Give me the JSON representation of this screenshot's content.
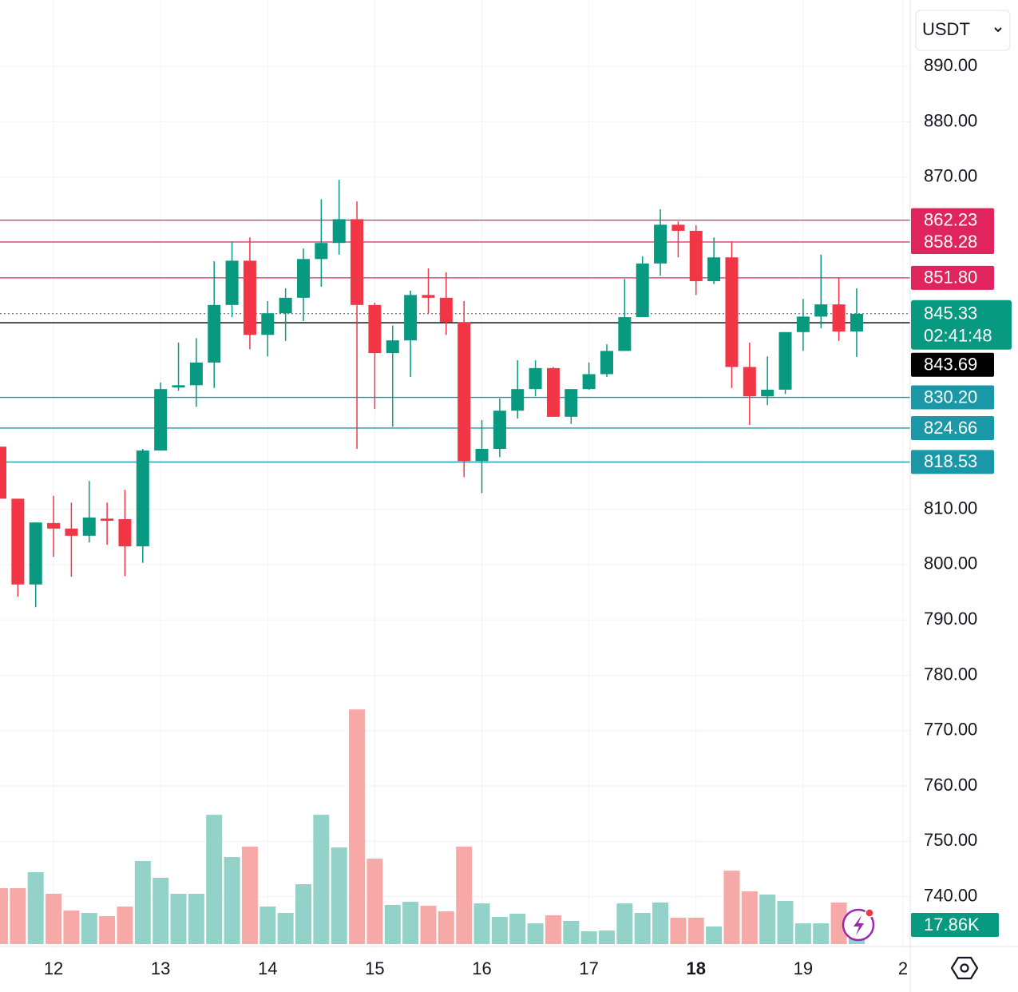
{
  "currency": "USDT",
  "chart_data": {
    "type": "candlestick",
    "colors": {
      "up": "#089981",
      "down": "#f23645",
      "volume_up": "#92d2c9",
      "volume_down": "#f7a9a7"
    },
    "open": [
      821.3,
      811.9,
      796.4,
      807.5,
      806.5,
      805.2,
      808.3,
      808.2,
      803.3,
      820.6,
      832.0,
      832.4,
      836.5,
      846.9,
      854.9,
      841.5,
      845.4,
      848.2,
      855.2,
      858.1,
      862.4,
      846.9,
      838.2,
      840.5,
      848.7,
      848.2,
      843.8,
      818.7,
      820.9,
      827.8,
      831.7,
      835.5,
      826.7,
      831.7,
      834.4,
      838.6,
      844.7,
      854.4,
      861.4,
      860.3,
      851.2,
      855.5,
      835.7,
      830.4,
      831.6,
      842.0,
      844.8,
      847.0,
      842.1
    ],
    "high": [
      821.3,
      811.9,
      807.6,
      812.4,
      811.2,
      815.1,
      811.2,
      813.5,
      820.9,
      832.9,
      840.1,
      840.9,
      854.8,
      858.4,
      859.1,
      847.6,
      849.9,
      857.1,
      866.0,
      869.5,
      865.6,
      847.3,
      843.2,
      849.5,
      853.5,
      852.8,
      847.6,
      826.1,
      830.0,
      836.9,
      836.9,
      835.7,
      831.7,
      836.5,
      839.8,
      851.6,
      855.7,
      864.2,
      862.0,
      861.3,
      859.1,
      858.4,
      840.1,
      837.6,
      842.0,
      848.0,
      856.0,
      851.9,
      849.9
    ],
    "low": [
      811.9,
      794.2,
      792.3,
      801.4,
      797.8,
      804.0,
      803.6,
      797.9,
      800.3,
      820.6,
      831.4,
      828.5,
      831.9,
      844.7,
      838.9,
      837.6,
      840.4,
      844.0,
      850.2,
      856.0,
      820.9,
      828.1,
      824.9,
      833.9,
      845.4,
      841.5,
      815.8,
      812.9,
      819.4,
      826.4,
      830.4,
      826.7,
      825.4,
      831.6,
      833.9,
      838.6,
      844.7,
      852.2,
      855.5,
      848.7,
      850.7,
      831.9,
      825.2,
      828.8,
      830.8,
      838.6,
      842.7,
      840.4,
      837.5
    ],
    "close": [
      811.9,
      796.4,
      807.6,
      806.5,
      805.2,
      808.5,
      807.9,
      803.3,
      820.6,
      831.7,
      832.4,
      836.5,
      846.9,
      854.9,
      841.5,
      845.4,
      848.2,
      855.2,
      858.1,
      862.4,
      846.9,
      838.2,
      840.5,
      848.7,
      848.2,
      843.8,
      818.7,
      820.9,
      827.8,
      831.7,
      835.5,
      826.7,
      831.7,
      834.4,
      838.6,
      844.7,
      854.4,
      861.4,
      860.3,
      851.2,
      855.5,
      835.7,
      830.4,
      831.6,
      842.0,
      844.8,
      847.0,
      842.1,
      845.3
    ],
    "volume": [
      52.1,
      52.1,
      67.0,
      46.9,
      31.3,
      29.0,
      26.0,
      35.0,
      77.4,
      61.8,
      46.9,
      46.9,
      120.5,
      81.1,
      90.8,
      35.0,
      29.0,
      55.8,
      120.5,
      90.0,
      218.7,
      79.6,
      36.5,
      39.4,
      35.7,
      30.5,
      90.8,
      37.9,
      25.3,
      28.3,
      19.3,
      26.8,
      21.6,
      11.9,
      12.6,
      37.9,
      29.0,
      38.7,
      24.6,
      24.6,
      16.4,
      68.4,
      49.1,
      46.1,
      40.2,
      19.3,
      19.3,
      38.7,
      17.86
    ],
    "volume_label": "17.86K",
    "volume_lim": [
      0,
      300
    ],
    "xlim": [
      0,
      51
    ],
    "xticks": [
      {
        "value": 3,
        "label": "12"
      },
      {
        "value": 9,
        "label": "13"
      },
      {
        "value": 15,
        "label": "14"
      },
      {
        "value": 21,
        "label": "15"
      },
      {
        "value": 27,
        "label": "16"
      },
      {
        "value": 33,
        "label": "17"
      },
      {
        "value": 39,
        "label": "18",
        "bold": true
      },
      {
        "value": 45,
        "label": "19"
      },
      {
        "value": 50.6,
        "label": "2"
      }
    ],
    "ylim": [
      731,
      902
    ],
    "yticks": [
      {
        "value": 740,
        "label": "740.00"
      },
      {
        "value": 750,
        "label": "750.00"
      },
      {
        "value": 760,
        "label": "760.00"
      },
      {
        "value": 770,
        "label": "770.00"
      },
      {
        "value": 780,
        "label": "780.00"
      },
      {
        "value": 790,
        "label": "790.00"
      },
      {
        "value": 800,
        "label": "800.00"
      },
      {
        "value": 810,
        "label": "810.00"
      },
      {
        "value": 870,
        "label": "870.00"
      },
      {
        "value": 880,
        "label": "880.00"
      },
      {
        "value": 890,
        "label": "890.00"
      }
    ],
    "grid": true,
    "levels": [
      {
        "value": 862.23,
        "label": "862.23",
        "color": "#e0245e"
      },
      {
        "value": 858.28,
        "label": "858.28",
        "color": "#e0245e"
      },
      {
        "value": 851.8,
        "label": "851.80",
        "color": "#e0245e"
      },
      {
        "value": 830.2,
        "label": "830.20",
        "color": "#1a98a8"
      },
      {
        "value": 824.66,
        "label": "824.66",
        "color": "#1a98a8"
      },
      {
        "value": 818.53,
        "label": "818.53",
        "color": "#1a98a8"
      }
    ],
    "last_price": {
      "value": 845.33,
      "label": "845.33",
      "countdown": "02:41:48",
      "color": "#089981"
    },
    "marker_price": {
      "value": 843.69,
      "label": "843.69",
      "color": "#000000"
    }
  }
}
